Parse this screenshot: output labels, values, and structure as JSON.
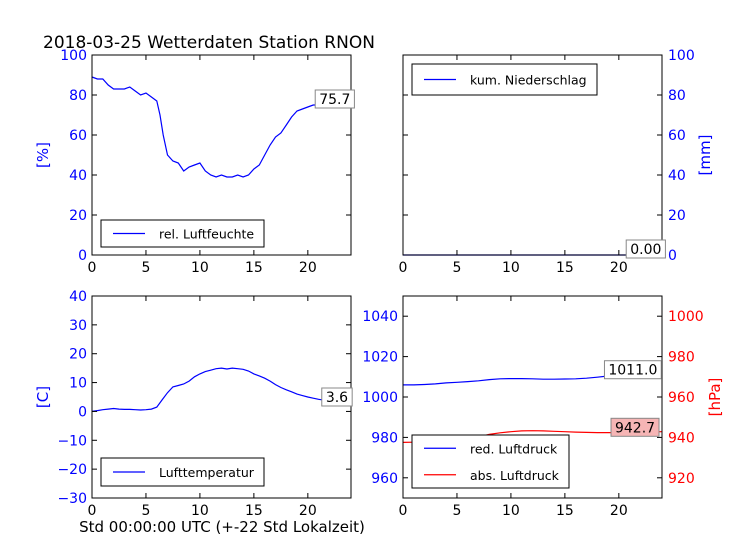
{
  "title": "2018-03-25 Wetterdaten Station RNON",
  "xlabel": "Std 00:00:00 UTC (+-22 Std Lokalzeit)",
  "colors": {
    "blue": "#0000ff",
    "red": "#ff0000",
    "ann_fill_white": "#ffffff",
    "ann_fill_red": "#f6b5b5"
  },
  "chart_data": [
    {
      "id": "humidity",
      "type": "line",
      "xlim": [
        0,
        24
      ],
      "ylim": [
        0,
        100
      ],
      "xticks": [
        0,
        5,
        10,
        15,
        20
      ],
      "yticks": [
        0,
        20,
        40,
        60,
        80,
        100
      ],
      "ylabel": "[%]",
      "ylabel_color": "#0000ff",
      "grid": false,
      "legend_position": "lower-left",
      "annotation": {
        "text": "75.7",
        "x": 22.5,
        "y": 78,
        "fill": "white"
      },
      "series": [
        {
          "name": "rel. Luftfeuchte",
          "color": "#0000ff",
          "x": [
            0,
            0.5,
            1,
            1.5,
            2,
            2.5,
            3,
            3.5,
            4,
            4.5,
            5,
            5.5,
            6,
            6.3,
            6.6,
            7,
            7.5,
            8,
            8.5,
            9,
            9.5,
            10,
            10.5,
            11,
            11.5,
            12,
            12.5,
            13,
            13.5,
            14,
            14.5,
            15,
            15.5,
            16,
            16.5,
            17,
            17.5,
            18,
            18.5,
            19,
            19.5,
            20,
            20.5,
            21,
            21.5,
            22,
            22.5,
            23,
            23.5,
            24
          ],
          "y": [
            89,
            88,
            88,
            85,
            83,
            83,
            83,
            84,
            82,
            80,
            81,
            79,
            77,
            70,
            60,
            50,
            47,
            46,
            42,
            44,
            45,
            46,
            42,
            40,
            39,
            40,
            39,
            39,
            40,
            39,
            40,
            43,
            45,
            50,
            55,
            59,
            61,
            65,
            69,
            72,
            73,
            74,
            75,
            75,
            76,
            77,
            76,
            78,
            79,
            80
          ]
        }
      ]
    },
    {
      "id": "precip",
      "type": "line",
      "xlim": [
        0,
        24
      ],
      "ylim": [
        0,
        100
      ],
      "xticks": [
        0,
        5,
        10,
        15,
        20
      ],
      "yticks": [
        0,
        20,
        40,
        60,
        80,
        100
      ],
      "ylabel": "[mm]",
      "ylabel_color": "#0000ff",
      "y_axis_side": "right",
      "grid": false,
      "legend_position": "upper-left",
      "annotation": {
        "text": "0.00",
        "x": 22.5,
        "y": 3,
        "fill": "white"
      },
      "series": [
        {
          "name": "kum. Niederschlag",
          "color": "#0000ff",
          "x": [
            0,
            24
          ],
          "y": [
            0,
            0
          ]
        }
      ]
    },
    {
      "id": "temperature",
      "type": "line",
      "xlim": [
        0,
        24
      ],
      "ylim": [
        -30,
        40
      ],
      "xticks": [
        0,
        5,
        10,
        15,
        20
      ],
      "yticks": [
        -30,
        -20,
        -10,
        0,
        10,
        20,
        30,
        40
      ],
      "ylabel": "[C]",
      "ylabel_color": "#0000ff",
      "grid": false,
      "legend_position": "lower-left",
      "annotation": {
        "text": "3.6",
        "x": 22.7,
        "y": 5,
        "fill": "white"
      },
      "series": [
        {
          "name": "Lufttemperatur",
          "color": "#0000ff",
          "x": [
            0,
            0.5,
            1,
            1.5,
            2,
            2.5,
            3,
            3.5,
            4,
            4.5,
            5,
            5.5,
            6,
            6.5,
            7,
            7.5,
            8,
            8.5,
            9,
            9.5,
            10,
            10.5,
            11,
            11.5,
            12,
            12.5,
            13,
            13.5,
            14,
            14.5,
            15,
            15.5,
            16,
            16.5,
            17,
            17.5,
            18,
            18.5,
            19,
            19.5,
            20,
            20.5,
            21,
            21.5,
            22,
            22.5,
            23,
            23.5,
            24
          ],
          "y": [
            0,
            0.3,
            0.6,
            0.8,
            1.0,
            0.8,
            0.7,
            0.7,
            0.6,
            0.5,
            0.6,
            0.8,
            1.5,
            4,
            6.5,
            8.5,
            9,
            9.5,
            10.5,
            12,
            13,
            13.8,
            14.3,
            14.8,
            15.0,
            14.7,
            15.0,
            14.8,
            14.6,
            14.0,
            13.0,
            12.3,
            11.5,
            10.5,
            9.3,
            8.3,
            7.5,
            6.8,
            6.0,
            5.5,
            5.0,
            4.6,
            4.2,
            3.9,
            3.6,
            3.4,
            3.3,
            3.2,
            3.3
          ]
        }
      ]
    },
    {
      "id": "pressure",
      "type": "line",
      "xlim": [
        0,
        24
      ],
      "ylim": [
        950,
        1050
      ],
      "xticks": [
        0,
        5,
        10,
        15,
        20
      ],
      "yticks": [
        960,
        980,
        1000,
        1020,
        1040
      ],
      "ylim_right": [
        910,
        1010
      ],
      "yticks_right": [
        920,
        940,
        960,
        980,
        1000
      ],
      "ylabel": "",
      "ylabel_color": "#0000ff",
      "ylabel_right": "[hPa]",
      "ylabel_right_color": "#ff0000",
      "grid": false,
      "legend_position": "lower-left",
      "annotations": [
        {
          "text": "1011.0",
          "x": 21.3,
          "y": 1013.5,
          "axis": "left",
          "fill": "white"
        },
        {
          "text": "942.7",
          "x": 21.5,
          "y": 945,
          "axis": "right",
          "fill": "red"
        }
      ],
      "series": [
        {
          "name": "red. Luftdruck",
          "color": "#0000ff",
          "axis": "left",
          "x": [
            0,
            1,
            2,
            3,
            4,
            5,
            6,
            7,
            8,
            9,
            10,
            11,
            12,
            13,
            14,
            15,
            16,
            17,
            18,
            19,
            20,
            21,
            22,
            23,
            24
          ],
          "y": [
            1006,
            1006,
            1006.2,
            1006.5,
            1007,
            1007.3,
            1007.6,
            1008,
            1008.6,
            1009,
            1009.1,
            1009.1,
            1009,
            1008.8,
            1008.8,
            1008.9,
            1009,
            1009.3,
            1009.8,
            1010.4,
            1010.8,
            1011.0,
            1011.0,
            1011.0,
            1011.1
          ]
        },
        {
          "name": "abs. Luftdruck",
          "color": "#ff0000",
          "axis": "right",
          "x": [
            0,
            1,
            2,
            3,
            4,
            5,
            6,
            7,
            8,
            9,
            10,
            11,
            12,
            13,
            14,
            15,
            16,
            17,
            18,
            19,
            20,
            21,
            22,
            23,
            24
          ],
          "y": [
            937.5,
            937.6,
            937.7,
            937.9,
            938.3,
            938.7,
            939.3,
            940.3,
            941.5,
            942.3,
            942.8,
            943.2,
            943.3,
            943.2,
            943.0,
            942.8,
            942.6,
            942.5,
            942.4,
            942.4,
            942.4,
            942.6,
            942.7,
            942.7,
            942.8
          ]
        }
      ]
    }
  ]
}
